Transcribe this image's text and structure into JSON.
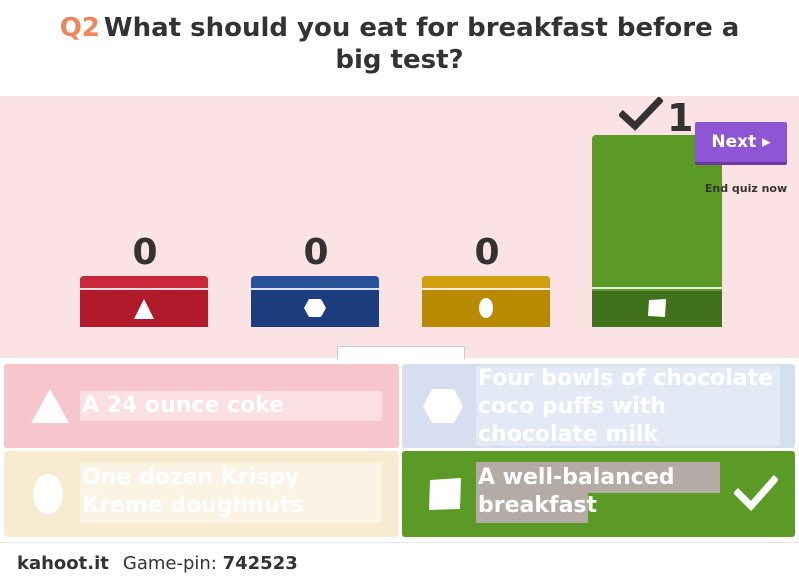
{
  "question": {
    "number": "Q2",
    "text": "What should you eat for breakfast before a big test?"
  },
  "colors": {
    "red": "#b01a2a",
    "blue": "#1c3e7e",
    "yellow": "#b98a00",
    "green": "#5b9b25",
    "purple": "#8e56d4",
    "results_bg": "#fbe3e5"
  },
  "results": [
    {
      "shape": "triangle-icon",
      "count": "0"
    },
    {
      "shape": "hexagon-icon",
      "count": "0"
    },
    {
      "shape": "circle-icon",
      "count": "0"
    },
    {
      "shape": "square-icon",
      "count": "1",
      "correct": true
    }
  ],
  "controls": {
    "next_label": "Next ▸",
    "end_quiz_label": "End quiz now"
  },
  "answers": [
    {
      "shape": "triangle-icon",
      "text": "A 24 ounce coke",
      "correct": false
    },
    {
      "shape": "hexagon-icon",
      "text": "Four bowls of chocolate coco puffs with chocolate milk",
      "correct": false
    },
    {
      "shape": "circle-icon",
      "text": "One dozen Krispy Kreme doughnuts",
      "correct": false
    },
    {
      "shape": "square-icon",
      "text": "A well-balanced breakfast",
      "correct": true
    }
  ],
  "footer": {
    "brand": "kahoot.it",
    "pin_label": "Game-pin:",
    "pin_value": "742523"
  }
}
